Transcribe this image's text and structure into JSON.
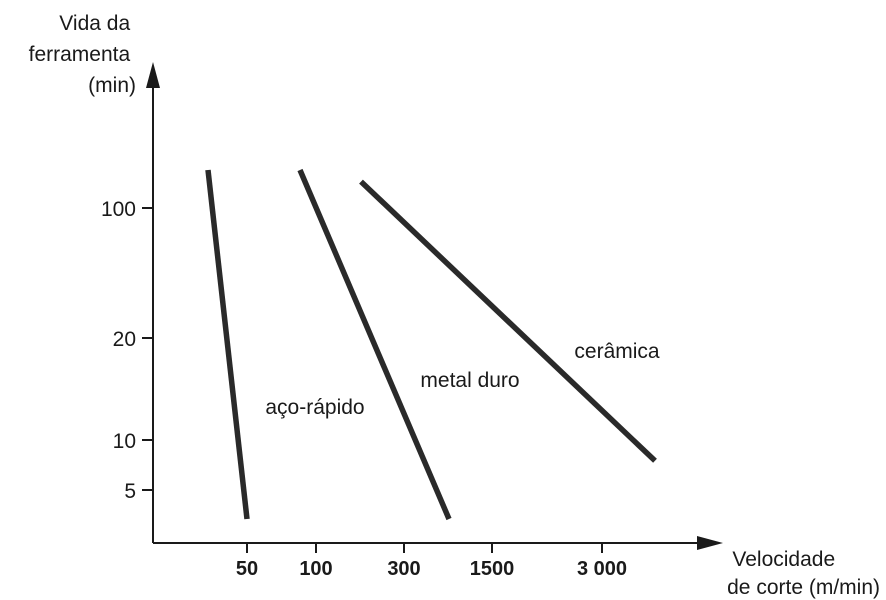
{
  "chart_data": {
    "type": "line",
    "ylabel": [
      "Vida da",
      "ferramenta",
      "(min)"
    ],
    "xlabel": [
      "Velocidade",
      "de corte (m/min)"
    ],
    "yticks": [
      {
        "value": 100,
        "label": "100"
      },
      {
        "value": 20,
        "label": "20"
      },
      {
        "value": 10,
        "label": "10"
      },
      {
        "value": 5,
        "label": "5"
      }
    ],
    "xticks": [
      {
        "value": 50,
        "label": "50"
      },
      {
        "value": 100,
        "label": "100"
      },
      {
        "value": 300,
        "label": "300"
      },
      {
        "value": 1500,
        "label": "1500"
      },
      {
        "value": 3000,
        "label": "3 000"
      }
    ],
    "series": [
      {
        "name": "aço-rápido",
        "x": [
          30,
          50
        ],
        "y": [
          130,
          3.5
        ]
      },
      {
        "name": "metal duro",
        "x": [
          90,
          500
        ],
        "y": [
          130,
          3.5
        ]
      },
      {
        "name": "cerâmica",
        "x": [
          200,
          5000
        ],
        "y": [
          120,
          7.5
        ]
      }
    ],
    "colors": {
      "axis": "#1a1a1a",
      "series": "#2a2a2a"
    }
  }
}
